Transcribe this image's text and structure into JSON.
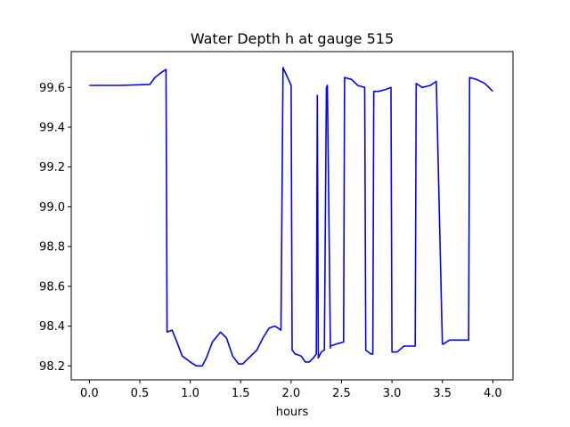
{
  "chart_data": {
    "type": "line",
    "title": "Water Depth h at gauge 515",
    "xlabel": "hours",
    "ylabel": "",
    "xlim": [
      -0.18,
      4.2
    ],
    "ylim": [
      98.13,
      99.78
    ],
    "xticks": [
      0.0,
      0.5,
      1.0,
      1.5,
      2.0,
      2.5,
      3.0,
      3.5,
      4.0
    ],
    "xtick_labels": [
      "0.0",
      "0.5",
      "1.0",
      "1.5",
      "2.0",
      "2.5",
      "3.0",
      "3.5",
      "4.0"
    ],
    "yticks": [
      98.2,
      98.4,
      98.6,
      98.8,
      99.0,
      99.2,
      99.4,
      99.6
    ],
    "ytick_labels": [
      "98.2",
      "98.4",
      "98.6",
      "98.8",
      "99.0",
      "99.2",
      "99.4",
      "99.6"
    ],
    "grid": false,
    "series": [
      {
        "color": "#0000ff",
        "x": [
          0.0,
          0.3,
          0.6,
          0.65,
          0.7,
          0.76,
          0.77,
          0.82,
          0.86,
          0.92,
          1.0,
          1.06,
          1.12,
          1.16,
          1.22,
          1.3,
          1.36,
          1.42,
          1.48,
          1.52,
          1.58,
          1.66,
          1.72,
          1.78,
          1.84,
          1.9,
          1.92,
          2.0,
          2.01,
          2.04,
          2.1,
          2.14,
          2.18,
          2.22,
          2.25,
          2.26,
          2.27,
          2.3,
          2.33,
          2.35,
          2.36,
          2.39,
          2.39,
          2.45,
          2.52,
          2.53,
          2.6,
          2.66,
          2.73,
          2.74,
          2.79,
          2.81,
          2.82,
          2.87,
          2.94,
          2.99,
          3.0,
          3.05,
          3.12,
          3.18,
          3.23,
          3.24,
          3.3,
          3.38,
          3.44,
          3.5,
          3.51,
          3.57,
          3.65,
          3.72,
          3.76,
          3.77,
          3.84,
          3.92,
          4.0
        ],
        "y": [
          99.61,
          99.61,
          99.615,
          99.65,
          99.67,
          99.69,
          98.37,
          98.38,
          98.33,
          98.25,
          98.22,
          98.2,
          98.2,
          98.24,
          98.32,
          98.37,
          98.34,
          98.25,
          98.21,
          98.21,
          98.24,
          98.28,
          98.34,
          98.39,
          98.4,
          98.38,
          99.7,
          99.61,
          98.28,
          98.26,
          98.25,
          98.22,
          98.22,
          98.24,
          98.26,
          99.56,
          98.24,
          98.27,
          98.28,
          99.6,
          99.61,
          98.29,
          98.3,
          98.31,
          98.32,
          99.65,
          99.64,
          99.61,
          99.6,
          98.28,
          98.26,
          98.26,
          99.58,
          99.58,
          99.59,
          99.6,
          98.27,
          98.27,
          98.3,
          98.3,
          98.3,
          99.62,
          99.6,
          99.61,
          99.63,
          98.31,
          98.31,
          98.33,
          98.33,
          98.33,
          98.33,
          99.65,
          99.64,
          99.62,
          99.58
        ]
      }
    ]
  }
}
